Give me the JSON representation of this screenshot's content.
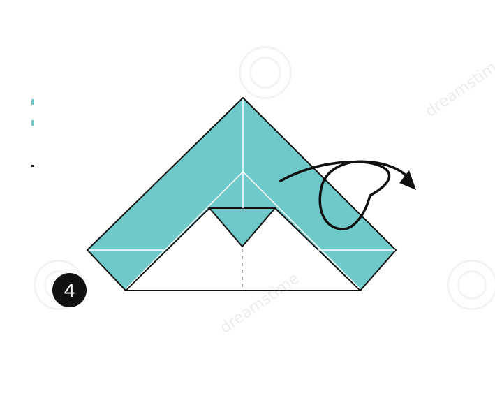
{
  "step": {
    "number": "4"
  },
  "diagram": {
    "subject": "origami fold diagram",
    "paper_color": "#6ec9c8",
    "inner_color": "#ffffff",
    "line_color": "#111111",
    "arrow": "turn-over-arrow"
  },
  "watermark": {
    "brand": "dreamstime",
    "logo": "spiral-logo-icon"
  }
}
